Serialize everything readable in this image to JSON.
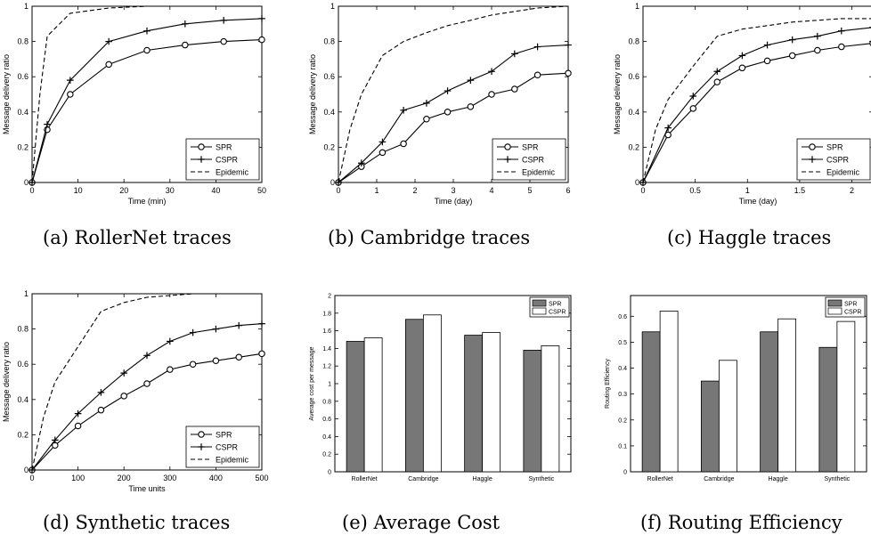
{
  "legend_defaults": [
    "SPR",
    "CSPR",
    "Epidemic"
  ],
  "chart_data": [
    {
      "id": "a",
      "type": "line",
      "caption": "(a) RollerNet traces",
      "xlabel": "Time (min)",
      "ylabel": "Message delivery ratio",
      "xlim": [
        0,
        50
      ],
      "ylim": [
        0,
        1
      ],
      "xticks": [
        0,
        10,
        20,
        30,
        40,
        50
      ],
      "xtick_labels": [
        "0",
        "10",
        "20",
        "30",
        "40",
        "50"
      ],
      "yticks": [
        0,
        0.2,
        0.4,
        0.6,
        0.8,
        1
      ],
      "ytick_labels": [
        "0",
        "0.2",
        "0.4",
        "0.6",
        "0.8",
        "1"
      ],
      "legend": "bottom-right",
      "series": [
        {
          "name": "SPR",
          "marker": "circle",
          "x": [
            0,
            3.3,
            8.3,
            16.7,
            25,
            33.3,
            41.7,
            50
          ],
          "y": [
            0,
            0.3,
            0.5,
            0.67,
            0.75,
            0.78,
            0.8,
            0.81
          ]
        },
        {
          "name": "CSPR",
          "marker": "plus",
          "x": [
            0,
            3.3,
            8.3,
            16.7,
            25,
            33.3,
            41.7,
            50
          ],
          "y": [
            0,
            0.33,
            0.58,
            0.8,
            0.86,
            0.9,
            0.92,
            0.93
          ]
        },
        {
          "name": "Epidemic",
          "marker": "none",
          "dashed": true,
          "x": [
            0,
            1.7,
            3.3,
            8.3,
            16.7,
            25,
            33.3,
            50
          ],
          "y": [
            0,
            0.5,
            0.83,
            0.96,
            0.99,
            1.0,
            1.0,
            1.0
          ]
        }
      ]
    },
    {
      "id": "b",
      "type": "line",
      "caption": "(b) Cambridge traces",
      "xlabel": "Time (day)",
      "ylabel": "Message delivery ratio",
      "xlim": [
        0,
        6
      ],
      "ylim": [
        0,
        1
      ],
      "xticks": [
        0,
        1,
        2,
        3,
        4,
        5,
        6
      ],
      "xtick_labels": [
        "0",
        "1",
        "2",
        "3",
        "4",
        "5",
        "6"
      ],
      "yticks": [
        0,
        0.2,
        0.4,
        0.6,
        0.8,
        1
      ],
      "ytick_labels": [
        "0",
        "0.2",
        "0.4",
        "0.6",
        "0.8",
        "1"
      ],
      "legend": "bottom-right",
      "series": [
        {
          "name": "SPR",
          "marker": "circle",
          "x": [
            0,
            0.6,
            1.15,
            1.7,
            2.3,
            2.85,
            3.45,
            4.0,
            4.6,
            5.2,
            6.0
          ],
          "y": [
            0,
            0.09,
            0.17,
            0.22,
            0.36,
            0.4,
            0.43,
            0.5,
            0.53,
            0.61,
            0.62
          ]
        },
        {
          "name": "CSPR",
          "marker": "plus",
          "x": [
            0,
            0.6,
            1.15,
            1.7,
            2.3,
            2.85,
            3.45,
            4.0,
            4.6,
            5.2,
            6.0
          ],
          "y": [
            0,
            0.11,
            0.23,
            0.41,
            0.45,
            0.52,
            0.58,
            0.63,
            0.73,
            0.77,
            0.78
          ]
        },
        {
          "name": "Epidemic",
          "marker": "none",
          "dashed": true,
          "x": [
            0,
            0.3,
            0.6,
            1.15,
            1.7,
            2.3,
            2.85,
            3.45,
            4.0,
            4.6,
            5.2,
            6.0
          ],
          "y": [
            0,
            0.3,
            0.5,
            0.72,
            0.8,
            0.85,
            0.89,
            0.92,
            0.95,
            0.97,
            0.99,
            1.0
          ]
        }
      ]
    },
    {
      "id": "c",
      "type": "line",
      "caption": "(c) Haggle traces",
      "xlabel": "Time (day)",
      "ylabel": "Message delivery ratio",
      "xlim": [
        0,
        2.2
      ],
      "ylim": [
        0,
        1
      ],
      "xticks": [
        0,
        0.5,
        1,
        1.5,
        2
      ],
      "xtick_labels": [
        "0",
        "0.5",
        "1",
        "1.5",
        "2"
      ],
      "yticks": [
        0,
        0.2,
        0.4,
        0.6,
        0.8,
        1
      ],
      "ytick_labels": [
        "0",
        "0.2",
        "0.4",
        "0.6",
        "0.8",
        "1"
      ],
      "legend": "bottom-right",
      "series": [
        {
          "name": "SPR",
          "marker": "circle",
          "x": [
            0,
            0.24,
            0.48,
            0.71,
            0.95,
            1.19,
            1.43,
            1.67,
            1.9,
            2.2
          ],
          "y": [
            0,
            0.27,
            0.42,
            0.57,
            0.65,
            0.69,
            0.72,
            0.75,
            0.77,
            0.79
          ]
        },
        {
          "name": "CSPR",
          "marker": "plus",
          "x": [
            0,
            0.24,
            0.48,
            0.71,
            0.95,
            1.19,
            1.43,
            1.67,
            1.9,
            2.2
          ],
          "y": [
            0,
            0.31,
            0.49,
            0.63,
            0.72,
            0.78,
            0.81,
            0.83,
            0.86,
            0.88
          ]
        },
        {
          "name": "Epidemic",
          "marker": "none",
          "dashed": true,
          "x": [
            0,
            0.12,
            0.24,
            0.48,
            0.71,
            0.95,
            1.19,
            1.43,
            1.67,
            1.9,
            2.2
          ],
          "y": [
            0,
            0.3,
            0.47,
            0.66,
            0.83,
            0.87,
            0.89,
            0.91,
            0.92,
            0.93,
            0.93
          ]
        }
      ]
    },
    {
      "id": "d",
      "type": "line",
      "caption": "(d) Synthetic traces",
      "xlabel": "Time units",
      "ylabel": "Message delivery ratio",
      "xlim": [
        0,
        500
      ],
      "ylim": [
        0,
        1
      ],
      "xticks": [
        0,
        100,
        200,
        300,
        400,
        500
      ],
      "xtick_labels": [
        "0",
        "100",
        "200",
        "300",
        "400",
        "500"
      ],
      "yticks": [
        0,
        0.2,
        0.4,
        0.6,
        0.8,
        1
      ],
      "ytick_labels": [
        "0",
        "0.2",
        "0.4",
        "0.6",
        "0.8",
        "1"
      ],
      "legend": "bottom-right",
      "series": [
        {
          "name": "SPR",
          "marker": "circle",
          "x": [
            0,
            50,
            100,
            150,
            200,
            250,
            300,
            350,
            400,
            450,
            500
          ],
          "y": [
            0,
            0.14,
            0.25,
            0.34,
            0.42,
            0.49,
            0.57,
            0.6,
            0.62,
            0.64,
            0.66
          ]
        },
        {
          "name": "CSPR",
          "marker": "plus",
          "x": [
            0,
            50,
            100,
            150,
            200,
            250,
            300,
            350,
            400,
            450,
            500
          ],
          "y": [
            0,
            0.17,
            0.32,
            0.44,
            0.55,
            0.65,
            0.73,
            0.78,
            0.8,
            0.82,
            0.83
          ]
        },
        {
          "name": "Epidemic",
          "marker": "none",
          "dashed": true,
          "x": [
            0,
            25,
            50,
            100,
            150,
            200,
            250,
            300,
            350,
            400,
            500
          ],
          "y": [
            0,
            0.3,
            0.5,
            0.7,
            0.9,
            0.95,
            0.98,
            0.99,
            1.0,
            1.0,
            1.0
          ]
        }
      ]
    },
    {
      "id": "e",
      "type": "bar",
      "caption": "(e) Average Cost",
      "xlabel": "",
      "ylabel": "Average cost per message",
      "ylim": [
        0,
        2
      ],
      "yticks": [
        0,
        0.2,
        0.4,
        0.6,
        0.8,
        1,
        1.2,
        1.4,
        1.6,
        1.8,
        2
      ],
      "ytick_labels": [
        "0",
        "0.2",
        "0.4",
        "0.6",
        "0.8",
        "1",
        "1.2",
        "1.4",
        "1.6",
        "1.8",
        "2"
      ],
      "legend": "top-right",
      "categories": [
        "RollerNet",
        "Cambridge",
        "Haggle",
        "Synthetic"
      ],
      "series": [
        {
          "name": "SPR",
          "color": "#777777",
          "values": [
            1.48,
            1.73,
            1.55,
            1.38
          ]
        },
        {
          "name": "CSPR",
          "color": "#ffffff",
          "values": [
            1.52,
            1.78,
            1.58,
            1.43
          ]
        }
      ]
    },
    {
      "id": "f",
      "type": "bar",
      "caption": "(f) Routing Efficiency",
      "xlabel": "",
      "ylabel": "Routing Efficiency",
      "ylim": [
        0,
        0.68
      ],
      "yticks": [
        0,
        0.1,
        0.2,
        0.3,
        0.4,
        0.5,
        0.6
      ],
      "ytick_labels": [
        "0",
        "0.1",
        "0.2",
        "0.3",
        "0.4",
        "0.5",
        "0.6"
      ],
      "legend": "top-right",
      "categories": [
        "RollerNet",
        "Cambridge",
        "Haggle",
        "Synthetic"
      ],
      "series": [
        {
          "name": "SPR",
          "color": "#777777",
          "values": [
            0.54,
            0.35,
            0.54,
            0.48
          ]
        },
        {
          "name": "CSPR",
          "color": "#ffffff",
          "values": [
            0.62,
            0.43,
            0.59,
            0.58
          ]
        }
      ]
    }
  ]
}
